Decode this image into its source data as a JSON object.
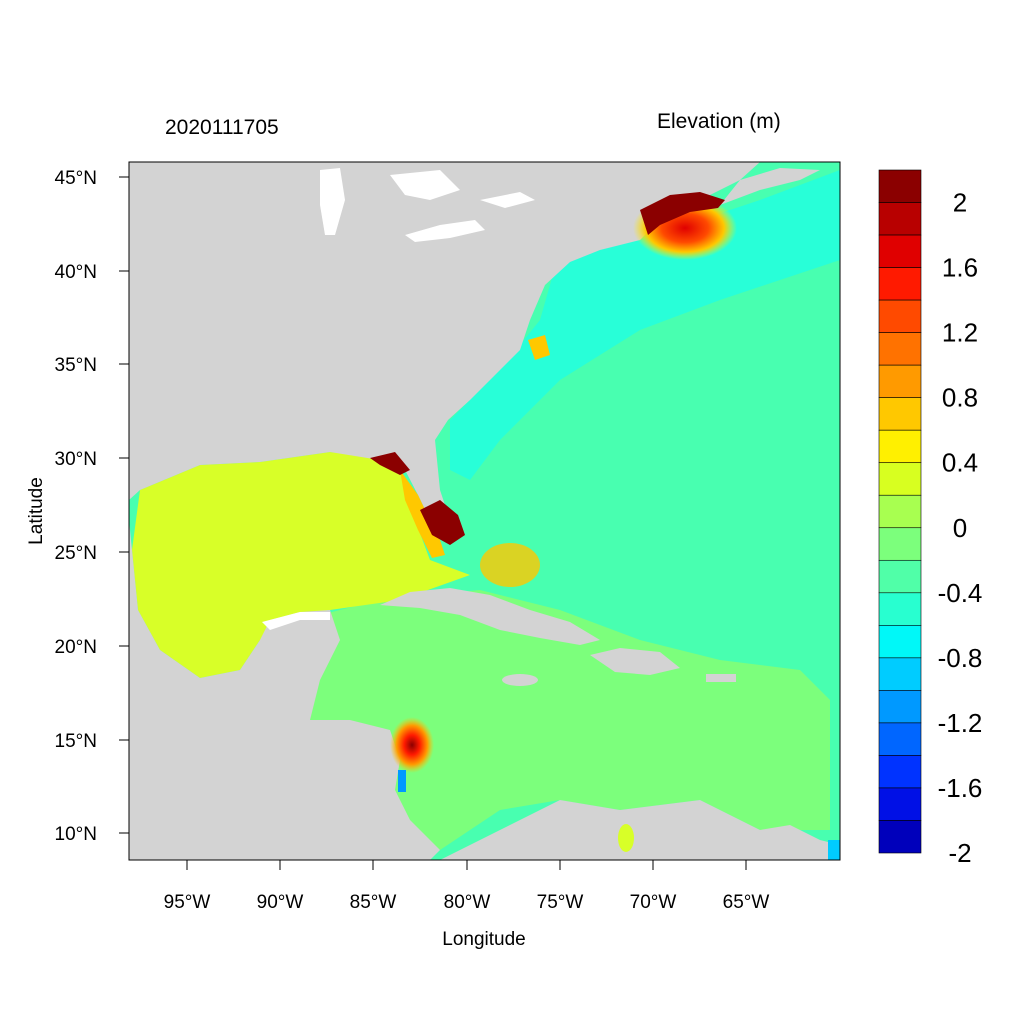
{
  "timestamp": "2020111705",
  "colorbar_title": "Elevation (m)",
  "axes": {
    "xlabel": "Longitude",
    "ylabel": "Latitude",
    "x_ticks": [
      "95°W",
      "90°W",
      "85°W",
      "80°W",
      "75°W",
      "70°W",
      "65°W"
    ],
    "y_ticks": [
      "45°N",
      "40°N",
      "35°N",
      "30°N",
      "25°N",
      "20°N",
      "15°N",
      "10°N"
    ]
  },
  "colorbar": {
    "tick_labels": [
      "2",
      "1.6",
      "1.2",
      "0.8",
      "0.4",
      "0",
      "-0.4",
      "-0.8",
      "-1.2",
      "-1.6",
      "-2"
    ],
    "colors": [
      "#8b0000",
      "#b80000",
      "#e00000",
      "#ff1a00",
      "#ff4a00",
      "#ff7200",
      "#ff9a00",
      "#ffc800",
      "#fff000",
      "#d8ff20",
      "#a8ff50",
      "#7cff7c",
      "#50ffa8",
      "#28ffd0",
      "#00f8f8",
      "#00ccff",
      "#0099ff",
      "#0066ff",
      "#0033ff",
      "#0010e6",
      "#0000bb"
    ]
  },
  "colors": {
    "land": "#d3d3d3",
    "gulf_of_mexico": "#d8ff28",
    "caribbean": "#7cff7c",
    "atlantic": "#48ffb0",
    "shelf": "#28ffd8",
    "surge_high": "#8b0000",
    "background": "#ffffff"
  }
}
